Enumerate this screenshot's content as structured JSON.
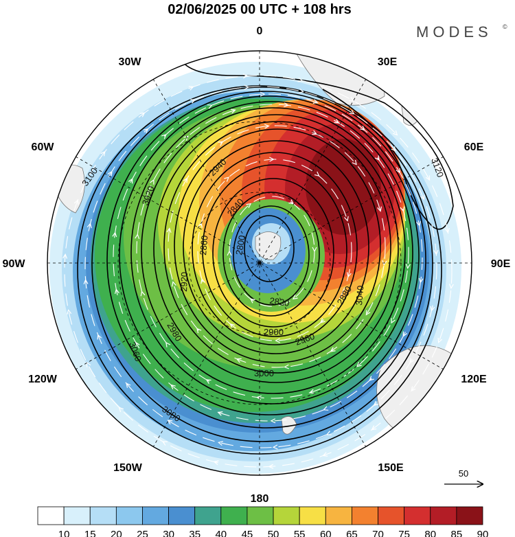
{
  "header": {
    "title": "02/06/2025  00 UTC  + 108 hrs",
    "brand": "MODES",
    "brand_mark": "©"
  },
  "map": {
    "projection": "polar-stereographic-south",
    "longitude_labels": {
      "top": "0",
      "top_right": "30E",
      "right_upper": "60E",
      "right": "90E",
      "right_lower": "120E",
      "bottom_right": "150E",
      "bottom": "180",
      "bottom_left": "150W",
      "left_lower": "120W",
      "left": "90W",
      "left_upper": "60W",
      "top_left": "30W"
    },
    "contour_labels": [
      {
        "text": "2800"
      },
      {
        "text": "2820"
      },
      {
        "text": "2840"
      },
      {
        "text": "2860"
      },
      {
        "text": "2880"
      },
      {
        "text": "2900"
      },
      {
        "text": "2920"
      },
      {
        "text": "2940"
      },
      {
        "text": "2960"
      },
      {
        "text": "2980"
      },
      {
        "text": "3000"
      },
      {
        "text": "3020"
      },
      {
        "text": "3040"
      },
      {
        "text": "3060"
      },
      {
        "text": "3080"
      },
      {
        "text": "3100"
      },
      {
        "text": "3120"
      }
    ],
    "land_color": "#efefef",
    "grid": true
  },
  "reference_vector": {
    "label": "50"
  },
  "colorbar": {
    "labels": [
      "10",
      "15",
      "20",
      "25",
      "30",
      "35",
      "40",
      "45",
      "50",
      "55",
      "60",
      "65",
      "70",
      "75",
      "80",
      "85",
      "90"
    ],
    "colors": [
      "#ffffff",
      "#d8f0fb",
      "#b5def6",
      "#8cc8ee",
      "#63a9e0",
      "#4a8fd0",
      "#3fa38e",
      "#3fb04e",
      "#6dbf45",
      "#b5d53a",
      "#f7df45",
      "#f7b440",
      "#f3812f",
      "#e6532b",
      "#d42f2f",
      "#b31d26",
      "#8a1218"
    ]
  }
}
